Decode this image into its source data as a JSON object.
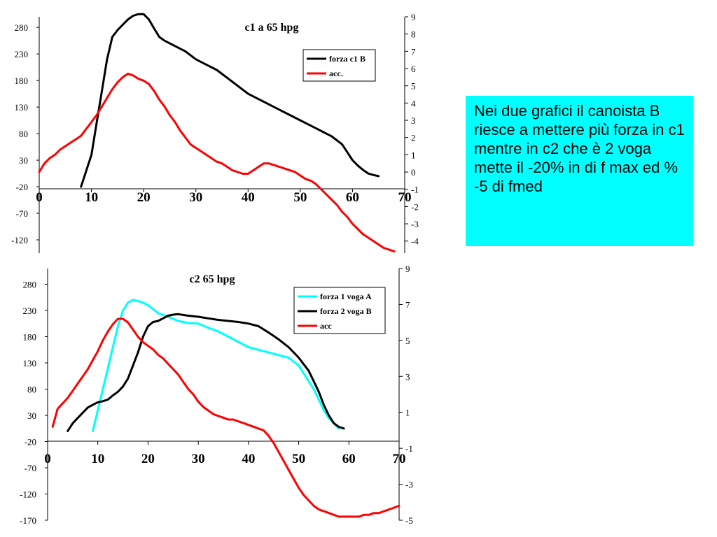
{
  "note": {
    "text": "Nei due grafici il canoista B riesce a mettere più forza in c1 mentre in c2 che è 2 voga mette il -20% in di f max ed % -5 di fmed",
    "background": "#00ffff"
  },
  "chart_data": [
    {
      "type": "line",
      "title": "c1 a 65 hpg",
      "x_ticks": [
        "0",
        "10",
        "20",
        "30",
        "40",
        "50",
        "60",
        "70"
      ],
      "xlim": [
        0,
        70
      ],
      "y_ticks": [
        "280",
        "230",
        "180",
        "130",
        "80",
        "30",
        "-20",
        "-70",
        "-120"
      ],
      "ylim": [
        -145,
        300
      ],
      "y2_ticks": [
        "9",
        "8",
        "7",
        "6",
        "5",
        "4",
        "3",
        "2",
        "1",
        "0",
        "-1",
        "-2",
        "-3",
        "-4"
      ],
      "y2lim": [
        -4.7,
        9
      ],
      "legend_position": "top-right",
      "series": [
        {
          "name": "forza c1 B",
          "axis": "left",
          "color": "#000000",
          "x": [
            8,
            10,
            11,
            12,
            13,
            14,
            15,
            16,
            17,
            18,
            19,
            20,
            21,
            22,
            23,
            24,
            26,
            28,
            30,
            32,
            34,
            36,
            38,
            40,
            42,
            44,
            46,
            48,
            50,
            52,
            54,
            56,
            58,
            59,
            60,
            61,
            62,
            63,
            64,
            65
          ],
          "values": [
            -20,
            40,
            100,
            160,
            220,
            262,
            275,
            285,
            295,
            302,
            305,
            305,
            295,
            278,
            262,
            255,
            245,
            235,
            220,
            210,
            200,
            185,
            170,
            155,
            145,
            135,
            125,
            115,
            105,
            95,
            85,
            75,
            60,
            45,
            30,
            20,
            12,
            5,
            2,
            0
          ]
        },
        {
          "name": "acc.",
          "axis": "right",
          "color": "#ff0000",
          "x": [
            0,
            1,
            2,
            3,
            4,
            5,
            6,
            7,
            8,
            9,
            10,
            11,
            12,
            13,
            14,
            15,
            16,
            17,
            18,
            19,
            20,
            21,
            22,
            23,
            24,
            25,
            26,
            27,
            28,
            29,
            30,
            31,
            32,
            33,
            34,
            35,
            36,
            37,
            38,
            39,
            40,
            41,
            42,
            43,
            44,
            45,
            46,
            47,
            48,
            49,
            50,
            51,
            52,
            53,
            54,
            55,
            56,
            57,
            58,
            59,
            60,
            61,
            62,
            63,
            64,
            65,
            66,
            67,
            68
          ],
          "values": [
            0,
            0.5,
            0.8,
            1.0,
            1.3,
            1.5,
            1.7,
            1.9,
            2.1,
            2.5,
            2.9,
            3.3,
            3.8,
            4.3,
            4.8,
            5.2,
            5.5,
            5.7,
            5.6,
            5.4,
            5.3,
            5.1,
            4.7,
            4.2,
            3.8,
            3.3,
            2.9,
            2.4,
            2.0,
            1.6,
            1.4,
            1.2,
            1.0,
            0.8,
            0.6,
            0.5,
            0.3,
            0.1,
            0.0,
            -0.1,
            -0.1,
            0.1,
            0.3,
            0.5,
            0.5,
            0.4,
            0.3,
            0.2,
            0.1,
            0.0,
            -0.2,
            -0.4,
            -0.5,
            -0.7,
            -1.0,
            -1.3,
            -1.6,
            -1.9,
            -2.3,
            -2.6,
            -3.0,
            -3.3,
            -3.6,
            -3.8,
            -4.0,
            -4.2,
            -4.4,
            -4.5,
            -4.6
          ]
        }
      ]
    },
    {
      "type": "line",
      "title": "c2 65 hpg",
      "x_ticks": [
        "0",
        "10",
        "20",
        "30",
        "40",
        "50",
        "60",
        "70"
      ],
      "xlim": [
        0,
        70
      ],
      "y_ticks": [
        "280",
        "230",
        "180",
        "130",
        "80",
        "30",
        "-20",
        "-70",
        "-120",
        "-170"
      ],
      "ylim": [
        -170,
        310
      ],
      "y2_ticks": [
        "9",
        "7",
        "5",
        "3",
        "1",
        "-1",
        "-3",
        "-5"
      ],
      "y2lim": [
        -5,
        9
      ],
      "legend_position": "top-right",
      "series": [
        {
          "name": "forza 1 voga A",
          "axis": "left",
          "color": "#00ffff",
          "x": [
            9,
            10,
            11,
            12,
            13,
            14,
            15,
            16,
            17,
            18,
            19,
            20,
            22,
            24,
            26,
            28,
            30,
            32,
            34,
            36,
            38,
            40,
            42,
            44,
            46,
            48,
            50,
            51,
            52,
            53,
            54,
            55,
            56,
            57,
            58
          ],
          "values": [
            0,
            40,
            80,
            120,
            160,
            200,
            230,
            245,
            250,
            248,
            245,
            240,
            225,
            218,
            210,
            206,
            205,
            197,
            190,
            180,
            170,
            160,
            155,
            150,
            145,
            140,
            125,
            110,
            95,
            80,
            60,
            40,
            25,
            15,
            5
          ]
        },
        {
          "name": "forza 2 voga B",
          "axis": "left",
          "color": "#000000",
          "x": [
            4,
            5,
            6,
            7,
            8,
            9,
            10,
            11,
            12,
            13,
            14,
            15,
            16,
            17,
            18,
            19,
            20,
            21,
            22,
            23,
            24,
            25,
            26,
            28,
            30,
            32,
            34,
            36,
            38,
            40,
            42,
            44,
            46,
            48,
            50,
            52,
            53,
            54,
            55,
            56,
            57,
            58,
            59
          ],
          "values": [
            0,
            15,
            25,
            35,
            45,
            50,
            55,
            57,
            60,
            68,
            75,
            85,
            100,
            125,
            150,
            180,
            200,
            208,
            210,
            215,
            220,
            222,
            223,
            220,
            218,
            215,
            212,
            210,
            208,
            205,
            200,
            188,
            175,
            160,
            140,
            115,
            95,
            75,
            50,
            30,
            15,
            8,
            5
          ]
        },
        {
          "name": "acc",
          "axis": "right",
          "color": "#ff0000",
          "x": [
            1,
            2,
            3,
            4,
            5,
            6,
            7,
            8,
            9,
            10,
            11,
            12,
            13,
            14,
            15,
            16,
            17,
            18,
            19,
            20,
            21,
            22,
            23,
            24,
            25,
            26,
            27,
            28,
            29,
            30,
            31,
            32,
            33,
            34,
            35,
            36,
            37,
            38,
            39,
            40,
            41,
            42,
            43,
            44,
            45,
            46,
            47,
            48,
            49,
            50,
            51,
            52,
            53,
            54,
            55,
            56,
            57,
            58,
            59,
            60,
            61,
            62,
            63,
            64,
            65,
            66,
            67,
            68,
            69,
            70
          ],
          "values": [
            0.2,
            1.2,
            1.5,
            1.8,
            2.2,
            2.6,
            3.0,
            3.4,
            3.9,
            4.4,
            5.0,
            5.5,
            5.9,
            6.2,
            6.2,
            6.0,
            5.6,
            5.2,
            4.9,
            4.7,
            4.5,
            4.2,
            4.0,
            3.7,
            3.4,
            3.1,
            2.7,
            2.3,
            2.0,
            1.6,
            1.3,
            1.1,
            0.9,
            0.8,
            0.7,
            0.6,
            0.6,
            0.5,
            0.4,
            0.3,
            0.2,
            0.1,
            0.0,
            -0.3,
            -0.7,
            -1.2,
            -1.7,
            -2.2,
            -2.7,
            -3.2,
            -3.6,
            -3.9,
            -4.2,
            -4.4,
            -4.5,
            -4.6,
            -4.7,
            -4.8,
            -4.8,
            -4.8,
            -4.8,
            -4.8,
            -4.7,
            -4.7,
            -4.6,
            -4.6,
            -4.5,
            -4.4,
            -4.3,
            -4.2
          ]
        }
      ]
    }
  ]
}
